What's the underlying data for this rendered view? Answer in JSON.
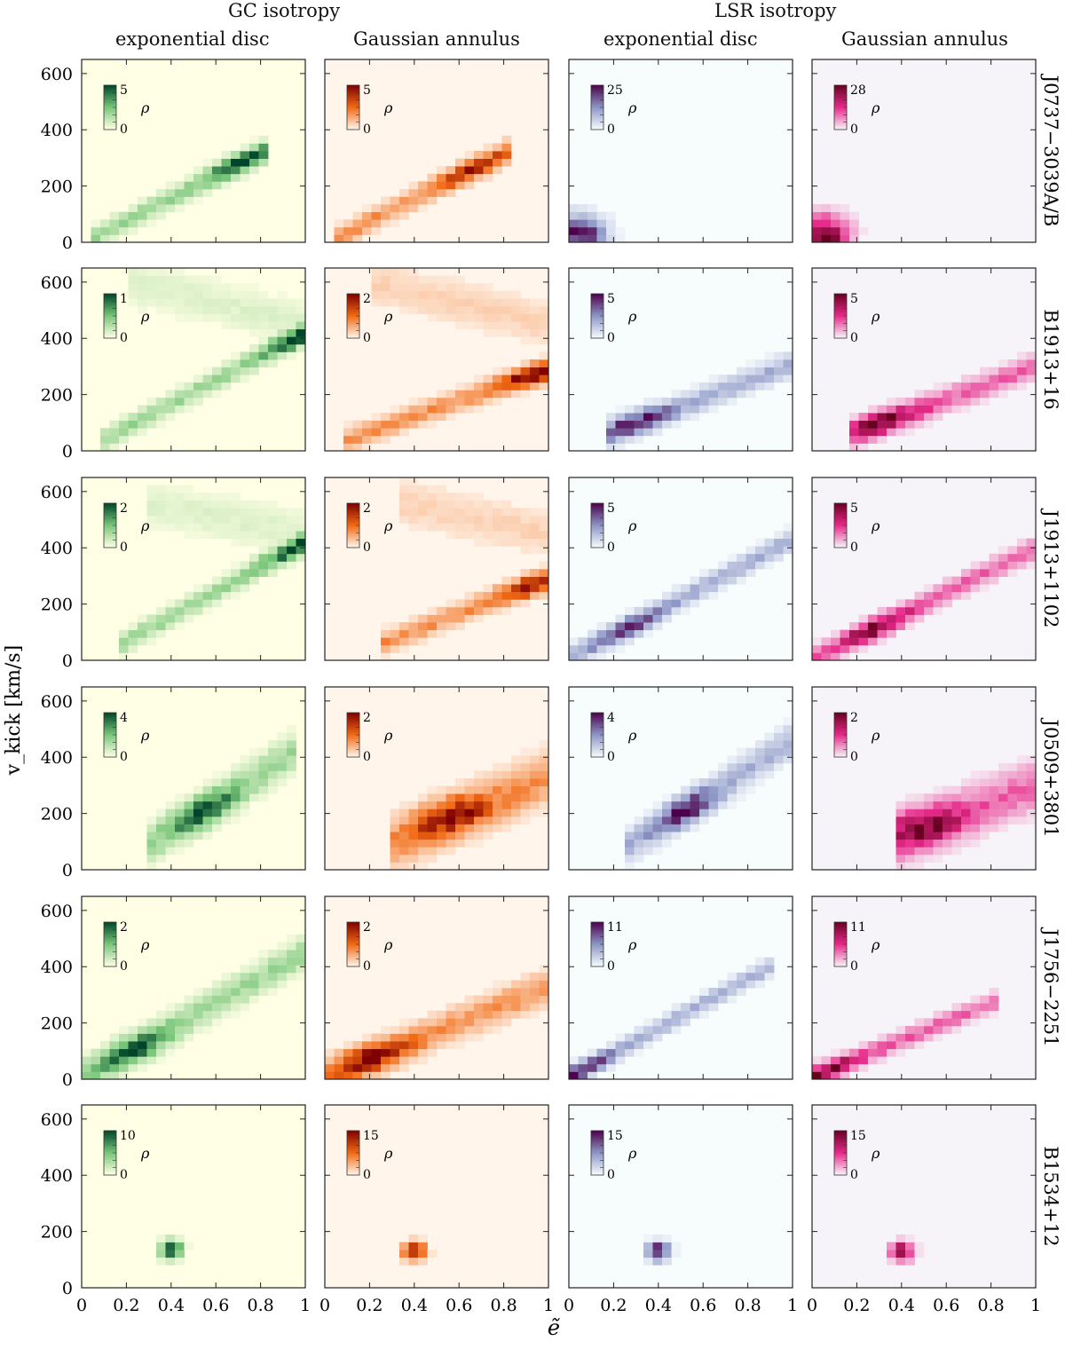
{
  "header": {
    "groups": [
      "GC isotropy",
      "LSR isotropy"
    ],
    "columns": [
      "exponential disc",
      "Gaussian annulus",
      "exponential disc",
      "Gaussian annulus"
    ]
  },
  "colorbar_symbol": "ρ",
  "colormaps": [
    {
      "name": "green",
      "low": "#ffffe5",
      "mid": "#78c679",
      "high": "#004529"
    },
    {
      "name": "red",
      "low": "#fff5eb",
      "mid": "#f16913",
      "high": "#7f0000"
    },
    {
      "name": "blue-purple",
      "low": "#f7fcfd",
      "mid": "#8c96c6",
      "high": "#4d004b"
    },
    {
      "name": "pink",
      "low": "#f7f4f9",
      "mid": "#e7298a",
      "high": "#67001f"
    }
  ],
  "chart_data": {
    "type": "heatmap",
    "xlabel": "ẽ",
    "ylabel": "v_kick [km/s]",
    "xlim": [
      0,
      1
    ],
    "ylim": [
      0,
      650
    ],
    "xticks": [
      "0",
      "0.2",
      "0.4",
      "0.6",
      "0.8",
      "1"
    ],
    "yticks": [
      "0",
      "200",
      "400",
      "600"
    ],
    "rows": [
      {
        "name": "J0737−3039A/B",
        "vmax": [
          5,
          5,
          25,
          28
        ],
        "features": [
          {
            "type": "band",
            "e": [
              0.05,
              0.83
            ],
            "v": [
              15,
              330
            ],
            "width": 40,
            "peak": [
              0.72,
              280
            ]
          },
          {
            "type": "band",
            "e": [
              0.05,
              0.83
            ],
            "v": [
              15,
              330
            ],
            "width": 40,
            "peak": [
              0.72,
              230
            ]
          },
          {
            "type": "blob",
            "e": 0.05,
            "v": 25,
            "spread": 0.13
          },
          {
            "type": "blob",
            "e": 0.05,
            "v": 25,
            "spread": 0.13
          }
        ]
      },
      {
        "name": "B1913+16",
        "vmax": [
          1,
          2,
          5,
          5
        ],
        "features": [
          {
            "type": "vshape",
            "e": [
              0.1,
              1.0
            ],
            "v": [
              40,
              420
            ],
            "upper": [
              600,
              450
            ],
            "peak": [
              0.95,
              400
            ]
          },
          {
            "type": "vshape",
            "e": [
              0.1,
              1.0
            ],
            "v": [
              40,
              290
            ],
            "upper": [
              600,
              450
            ],
            "peak": [
              0.95,
              270
            ]
          },
          {
            "type": "band",
            "e": [
              0.18,
              1.0
            ],
            "v": [
              60,
              310
            ],
            "width": 45,
            "peak": [
              0.28,
              110
            ]
          },
          {
            "type": "band",
            "e": [
              0.18,
              1.0
            ],
            "v": [
              60,
              300
            ],
            "width": 45,
            "peak": [
              0.3,
              110
            ]
          }
        ]
      },
      {
        "name": "J1913+1102",
        "vmax": [
          2,
          2,
          5,
          5
        ],
        "features": [
          {
            "type": "vshape",
            "e": [
              0.18,
              1.0
            ],
            "v": [
              60,
              420
            ],
            "upper": [
              560,
              450
            ],
            "peak": [
              0.95,
              410
            ]
          },
          {
            "type": "vshape",
            "e": [
              0.25,
              1.0
            ],
            "v": [
              60,
              290
            ],
            "upper": [
              560,
              450
            ],
            "peak": [
              0.95,
              270
            ]
          },
          {
            "type": "band",
            "e": [
              0.02,
              1.0
            ],
            "v": [
              15,
              430
            ],
            "width": 40,
            "peak": [
              0.3,
              100
            ]
          },
          {
            "type": "band",
            "e": [
              0.03,
              1.0
            ],
            "v": [
              15,
              400
            ],
            "width": 40,
            "peak": [
              0.3,
              100
            ]
          }
        ]
      },
      {
        "name": "J0509+3801",
        "vmax": [
          4,
          2,
          4,
          2
        ],
        "features": [
          {
            "type": "band",
            "e": [
              0.33,
              0.95
            ],
            "v": [
              100,
              420
            ],
            "width": 70,
            "peak": [
              0.55,
              200
            ]
          },
          {
            "type": "band",
            "e": [
              0.33,
              1.0
            ],
            "v": [
              100,
              330
            ],
            "width": 90,
            "peak": [
              0.55,
              200
            ]
          },
          {
            "type": "band",
            "e": [
              0.28,
              1.0
            ],
            "v": [
              90,
              460
            ],
            "width": 60,
            "peak": [
              0.55,
              200
            ]
          },
          {
            "type": "band",
            "e": [
              0.38,
              1.0
            ],
            "v": [
              110,
              300
            ],
            "width": 90,
            "peak": [
              0.48,
              160
            ]
          }
        ]
      },
      {
        "name": "J1756−2251",
        "vmax": [
          2,
          2,
          11,
          11
        ],
        "features": [
          {
            "type": "band",
            "e": [
              0.02,
              1.0
            ],
            "v": [
              15,
              450
            ],
            "width": 60,
            "peak": [
              0.25,
              90
            ]
          },
          {
            "type": "band",
            "e": [
              0.02,
              1.0
            ],
            "v": [
              15,
              330
            ],
            "width": 60,
            "peak": [
              0.2,
              70
            ]
          },
          {
            "type": "band",
            "e": [
              0.02,
              0.9
            ],
            "v": [
              15,
              400
            ],
            "width": 35,
            "peak": [
              0.05,
              20
            ]
          },
          {
            "type": "band",
            "e": [
              0.02,
              0.8
            ],
            "v": [
              15,
              270
            ],
            "width": 35,
            "peak": [
              0.05,
              20
            ]
          }
        ]
      },
      {
        "name": "B1534+12",
        "vmax": [
          10,
          15,
          15,
          15
        ],
        "features": [
          {
            "type": "blob",
            "e": 0.4,
            "v": 135,
            "spread": 0.06
          },
          {
            "type": "blob",
            "e": 0.4,
            "v": 130,
            "spread": 0.06
          },
          {
            "type": "blob",
            "e": 0.4,
            "v": 130,
            "spread": 0.06
          },
          {
            "type": "blob",
            "e": 0.4,
            "v": 130,
            "spread": 0.06
          }
        ]
      }
    ]
  }
}
